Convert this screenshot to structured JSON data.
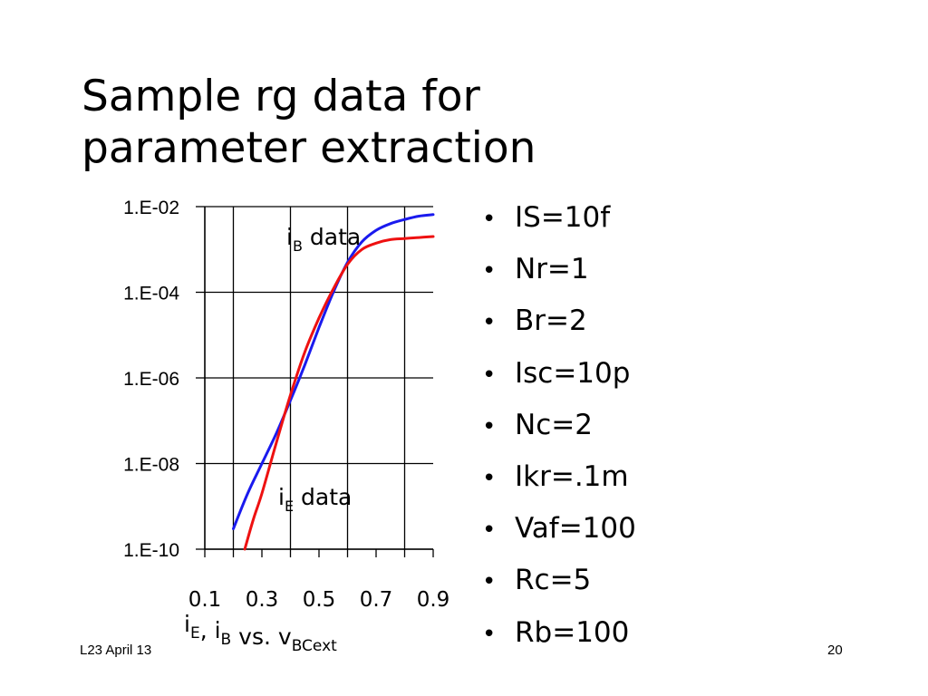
{
  "slide": {
    "title_lines": [
      "Sample rg data for",
      "parameter extraction"
    ],
    "footer_left": "L23 April 13",
    "page_number": "20"
  },
  "bullets": [
    "IS=10f",
    "Nr=1",
    "Br=2",
    "Isc=10p",
    "Nc=2",
    "Ikr=.1m",
    "Vaf=100",
    "Rc=5",
    "Rb=100"
  ],
  "chart_data": {
    "type": "line",
    "title": "",
    "xlabel": {
      "parts": [
        {
          "text": "i",
          "sub": "E"
        },
        {
          "text": ", i",
          "sub": "B"
        },
        {
          "text": " vs. v",
          "sub": "BCext"
        }
      ]
    },
    "ylabel": "",
    "x_ticks": [
      "0.1",
      "0.3",
      "0.5",
      "0.7",
      "0.9"
    ],
    "y_ticks": [
      "1.E-02",
      "1.E-04",
      "1.E-06",
      "1.E-08",
      "1.E-10"
    ],
    "xlim": [
      0.1,
      0.9
    ],
    "ylim": [
      1e-10,
      0.01
    ],
    "y_scale": "log",
    "grid": true,
    "annotations": [
      {
        "main": "i",
        "sub": "B",
        "rest": " data",
        "series": "iB"
      },
      {
        "main": "i",
        "sub": "E",
        "rest": " data",
        "series": "iE"
      }
    ],
    "series": [
      {
        "id": "iB",
        "color": "#1a1aee",
        "x": [
          0.2,
          0.25,
          0.3,
          0.35,
          0.4,
          0.45,
          0.5,
          0.55,
          0.6,
          0.65,
          0.7,
          0.75,
          0.8,
          0.85,
          0.9
        ],
        "y": [
          3e-10,
          2e-09,
          1e-08,
          5e-08,
          3e-07,
          2e-06,
          1.5e-05,
          0.0001,
          0.0005,
          0.0015,
          0.0028,
          0.004,
          0.005,
          0.006,
          0.0065
        ]
      },
      {
        "id": "iE",
        "color": "#ee1111",
        "x": [
          0.24,
          0.27,
          0.3,
          0.35,
          0.4,
          0.45,
          0.5,
          0.55,
          0.6,
          0.65,
          0.7,
          0.75,
          0.8,
          0.85,
          0.9
        ],
        "y": [
          1e-10,
          5e-10,
          2e-09,
          3e-08,
          4e-07,
          4e-06,
          2.5e-05,
          0.00012,
          0.00045,
          0.001,
          0.0014,
          0.0017,
          0.0018,
          0.0019,
          0.002
        ]
      }
    ]
  }
}
